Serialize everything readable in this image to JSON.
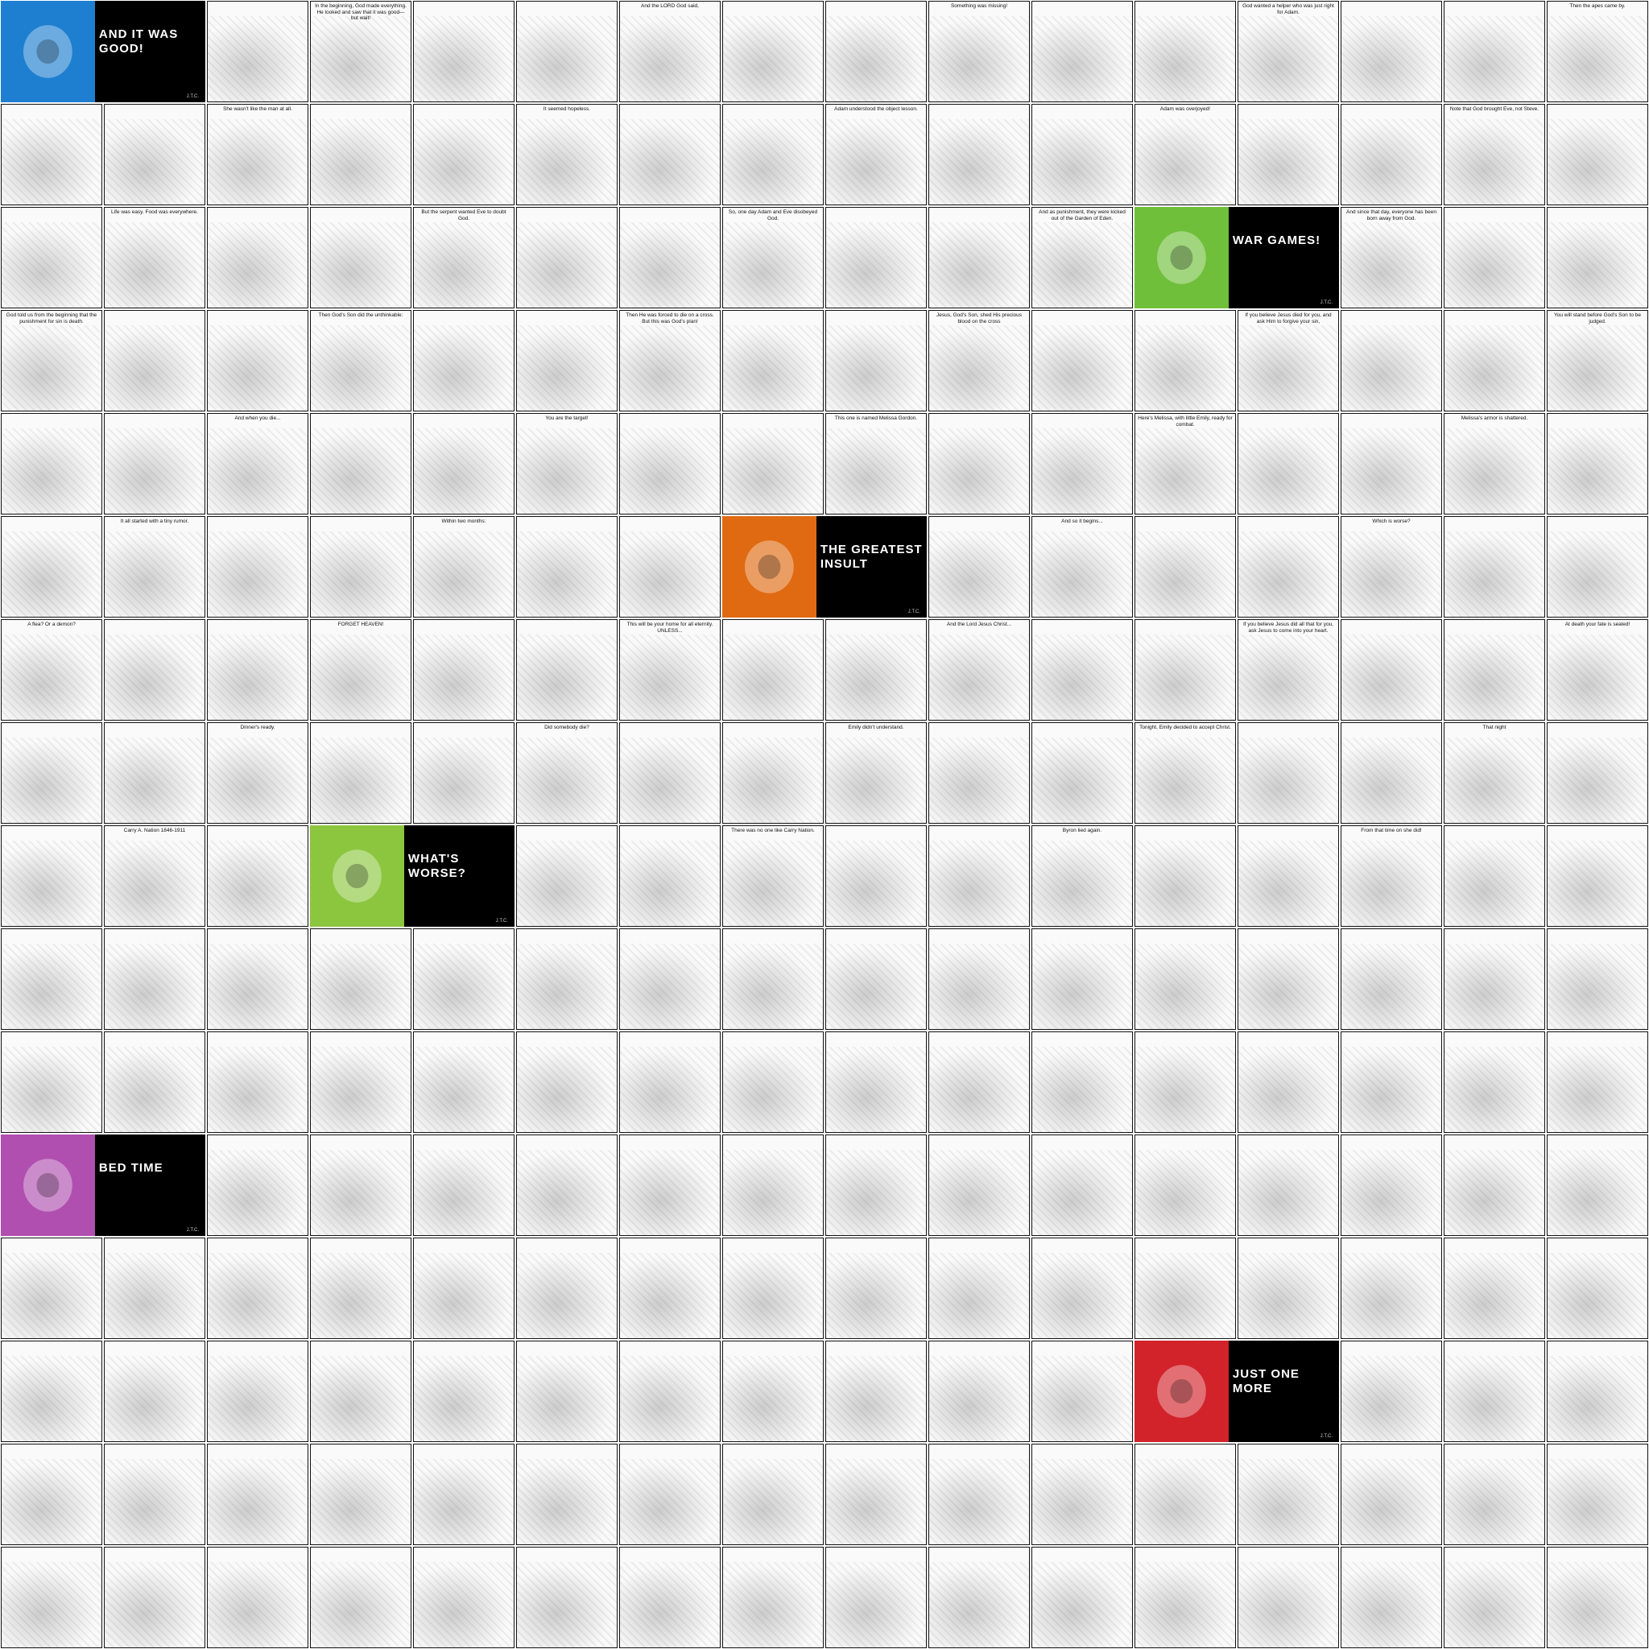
{
  "tracts": [
    {
      "title": "AND IT WAS GOOD!",
      "accent": "#1e7fd0",
      "icon": "thumbs-up-icon"
    },
    {
      "title": "WAR GAMES!",
      "accent": "#6fbf3a",
      "icon": "crosshair-icon"
    },
    {
      "title": "THE GREATEST INSULT",
      "accent": "#e06a12",
      "icon": "king-icon"
    },
    {
      "title": "WHAT'S WORSE?",
      "accent": "#8cc63f",
      "icon": "flea-icon"
    },
    {
      "title": "BED TIME",
      "accent": "#b04fb0",
      "icon": "moon-icon"
    },
    {
      "title": "JUST ONE MORE",
      "accent": "#d2232a",
      "icon": "bottle-icon"
    }
  ],
  "signature": "J.T.C.",
  "captions": [
    "In the beginning, God made everything. He looked and saw that it was good—but wait!",
    "And the LORD God said,",
    "Something was missing!",
    "God wanted a helper who was just right for Adam.",
    "Then the apes came by.",
    "She wasn't like the man at all.",
    "It seemed hopeless.",
    "Adam understood the object lesson.",
    "Adam was overjoyed!",
    "Note that God brought Eve, not Steve.",
    "Life was easy. Food was everywhere.",
    "But the serpent wanted Eve to doubt God.",
    "So, one day Adam and Eve disobeyed God.",
    "And as punishment, they were kicked out of the Garden of Eden.",
    "And since that day, everyone has been born away from God.",
    "God told us from the beginning that the punishment for sin is death.",
    "Then God's Son did the unthinkable:",
    "Then He was forced to die on a cross. But this was God's plan!",
    "Jesus, God's Son, shed His precious blood on the cross",
    "If you believe Jesus died for you, and ask Him to forgive your sin,",
    "You will stand before God's Son to be judged.",
    "And when you die...",
    "You are the target!",
    "This one is named Melissa Gordon.",
    "Here's Melissa, with little Emily, ready for combat.",
    "Melissa's armor is shattered.",
    "It all started with a tiny rumor.",
    "Within two months:",
    "And so it begins...",
    "Which is worse?",
    "A flea? Or a demon?",
    "FORGET HEAVEN!",
    "This will be your home for all eternity. UNLESS...",
    "And the Lord Jesus Christ...",
    "If you believe Jesus did all that for you, ask Jesus to come into your heart.",
    "At death your fate is sealed!",
    "Dinner's ready.",
    "Did somebody die?",
    "Emily didn't understand.",
    "Tonight, Emily decided to accept Christ.",
    "That night",
    "Carry A. Nation 1846-1911",
    "There was no one like Carry Nation.",
    "Byron lied again.",
    "From that time on she did!"
  ]
}
